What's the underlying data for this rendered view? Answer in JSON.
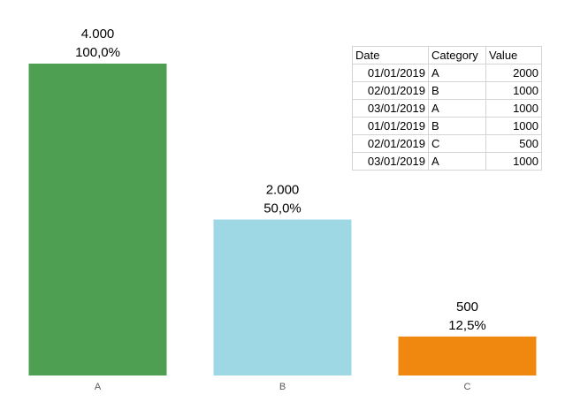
{
  "chart_data": {
    "type": "bar",
    "categories": [
      "A",
      "B",
      "C"
    ],
    "values": [
      4000,
      2000,
      500
    ],
    "value_labels": [
      "4.000",
      "2.000",
      "500"
    ],
    "percent_labels": [
      "100,0%",
      "50,0%",
      "12,5%"
    ],
    "colors": [
      "#4f9f52",
      "#9dd8e4",
      "#f0880f"
    ],
    "title": "",
    "xlabel": "",
    "ylabel": "",
    "ylim": [
      0,
      4000
    ],
    "grid": false,
    "legend": "none"
  },
  "table": {
    "headers": [
      "Date",
      "Category",
      "Value"
    ],
    "rows": [
      [
        "01/01/2019",
        "A",
        "2000"
      ],
      [
        "02/01/2019",
        "B",
        "1000"
      ],
      [
        "03/01/2019",
        "A",
        "1000"
      ],
      [
        "01/01/2019",
        "B",
        "1000"
      ],
      [
        "02/01/2019",
        "C",
        "500"
      ],
      [
        "03/01/2019",
        "A",
        "1000"
      ]
    ]
  }
}
